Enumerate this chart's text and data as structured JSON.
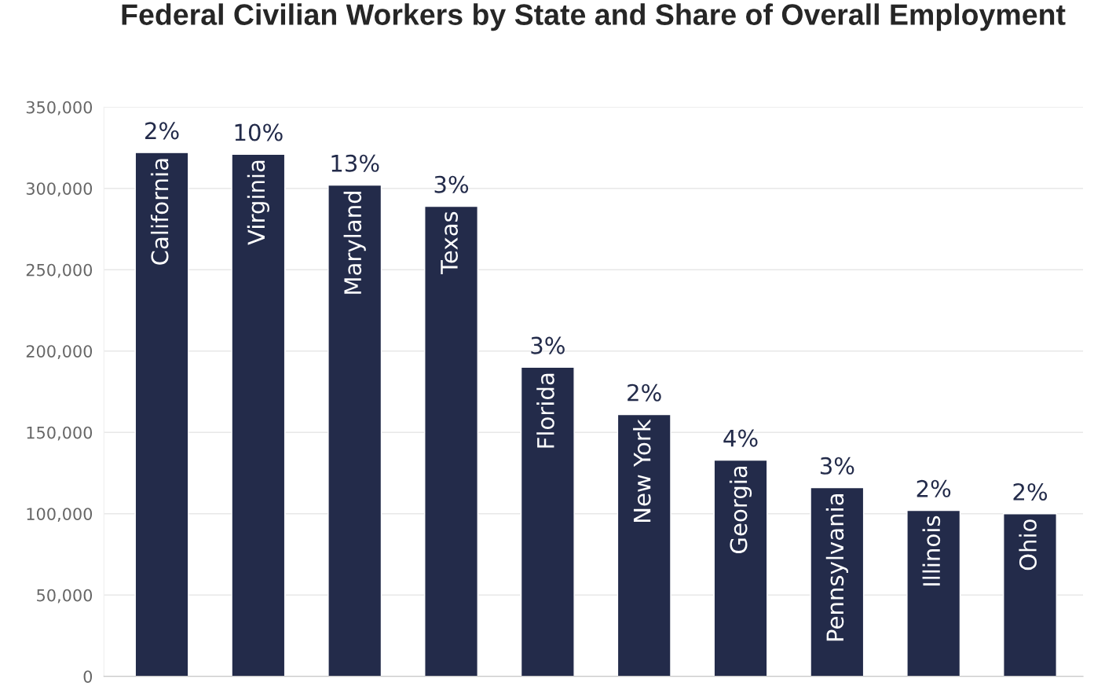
{
  "chart_data": {
    "type": "bar",
    "title": "Federal Civilian Workers by State and Share of Overall Employment",
    "categories": [
      "California",
      "Virginia",
      "Maryland",
      "Texas",
      "Florida",
      "New York",
      "Georgia",
      "Pennsylvania",
      "Illinois",
      "Ohio"
    ],
    "values": [
      322000,
      321000,
      302000,
      289000,
      190000,
      161000,
      133000,
      116000,
      102000,
      100000
    ],
    "annotations": [
      {
        "text": "2%",
        "x": "California",
        "y": 322000
      },
      {
        "text": "10%",
        "x": "Virginia",
        "y": 321000
      },
      {
        "text": "13%",
        "x": "Maryland",
        "y": 302000
      },
      {
        "text": "3%",
        "x": "Texas",
        "y": 289000
      },
      {
        "text": "3%",
        "x": "Florida",
        "y": 190000
      },
      {
        "text": "2%",
        "x": "New York",
        "y": 161000
      },
      {
        "text": "4%",
        "x": "Georgia",
        "y": 133000
      },
      {
        "text": "3%",
        "x": "Pennsylvania",
        "y": 116000
      },
      {
        "text": "2%",
        "x": "Illinois",
        "y": 102000
      },
      {
        "text": "2%",
        "x": "Ohio",
        "y": 100000
      }
    ],
    "color": "#232b4a",
    "ylim": [
      0,
      350000
    ],
    "yticks": [
      {
        "value": 0,
        "label": "0"
      },
      {
        "value": 50000,
        "label": "50,000"
      },
      {
        "value": 100000,
        "label": "100,000"
      },
      {
        "value": 150000,
        "label": "150,000"
      },
      {
        "value": 200000,
        "label": "200,000"
      },
      {
        "value": 250000,
        "label": "250,000"
      },
      {
        "value": 300000,
        "label": "300,000"
      },
      {
        "value": 350000,
        "label": "350,000"
      }
    ],
    "grid": "y",
    "legend": false
  }
}
